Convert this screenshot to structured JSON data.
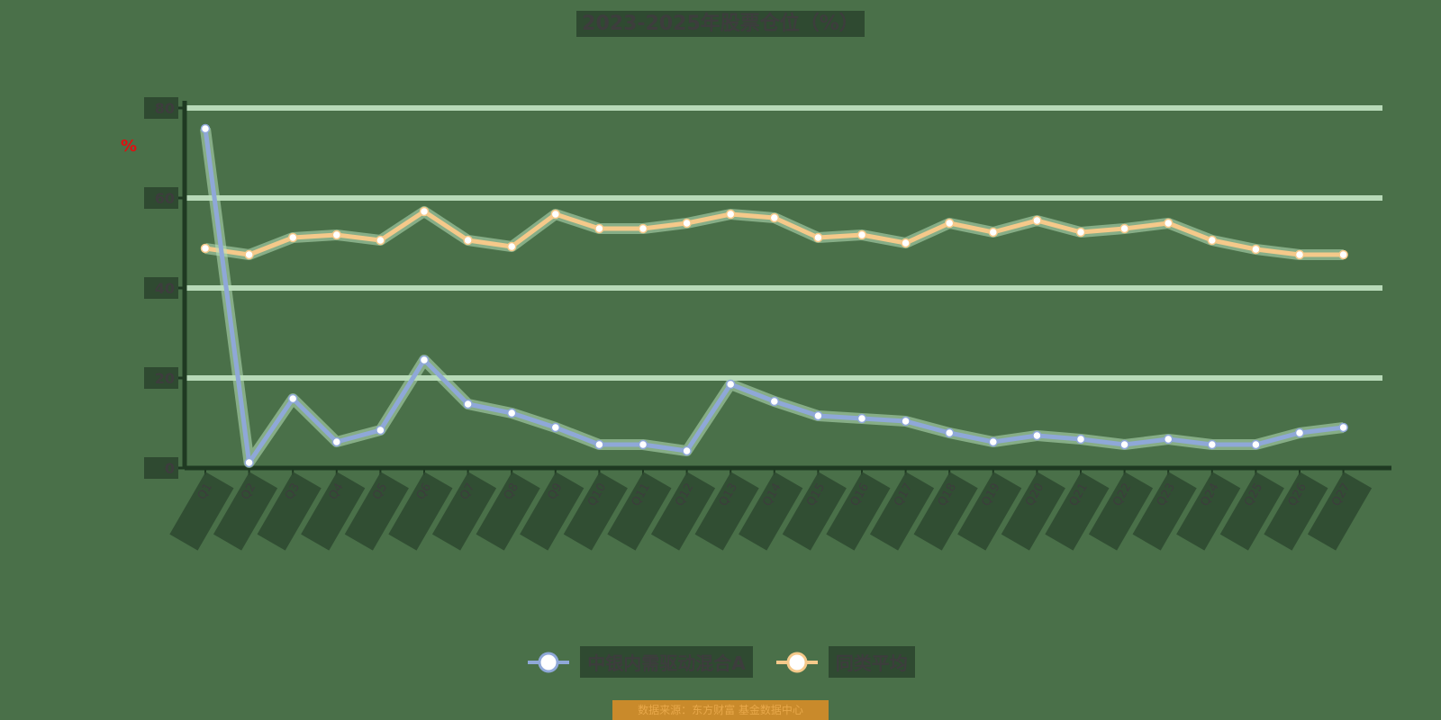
{
  "title": "2023-2025年股票仓位（%）",
  "y_unit_mark": "%",
  "legend": [
    {
      "label": "中银内需驱动混合A",
      "color": "#8fa8d8"
    },
    {
      "label": "同类平均",
      "color": "#f5c98a"
    }
  ],
  "footer": "数据来源：东方财富 基金数据中心",
  "colors": {
    "background": "#4a7049",
    "gridline": "#b8d9b8",
    "axis": "#1f3a22",
    "series_fund": "#8fa8d8",
    "series_avg": "#f5c98a",
    "unit_mark": "#e01010"
  },
  "chart_data": {
    "type": "line",
    "title": "2023-2025年股票仓位（%）",
    "xlabel": "",
    "ylabel": "%",
    "ylim": [
      0,
      80
    ],
    "yticks": [
      0,
      20,
      40,
      60,
      80
    ],
    "grid": true,
    "legend_position": "bottom",
    "categories": [
      "Q1",
      "Q2",
      "Q3",
      "Q4",
      "Q5",
      "Q6",
      "Q7",
      "Q8",
      "Q9",
      "Q10",
      "Q11",
      "Q12",
      "Q13",
      "Q14",
      "Q15",
      "Q16",
      "Q17",
      "Q18",
      "Q19",
      "Q20",
      "Q21",
      "Q22",
      "Q23",
      "Q24",
      "Q25",
      "Q26",
      "Q27"
    ],
    "series": [
      {
        "name": "中银内需驱动混合A",
        "values": [
          75.4,
          1.2,
          15.4,
          5.8,
          8.4,
          24.0,
          14.2,
          12.2,
          9.0,
          5.2,
          5.2,
          3.8,
          18.6,
          14.8,
          11.6,
          11.0,
          10.4,
          7.8,
          5.8,
          7.2,
          6.4,
          5.2,
          6.4,
          5.2,
          5.2,
          7.8,
          9.0
        ]
      },
      {
        "name": "同类平均",
        "values": [
          48.8,
          47.4,
          51.2,
          51.8,
          50.6,
          57.0,
          50.6,
          49.2,
          56.4,
          53.2,
          53.2,
          54.4,
          56.4,
          55.6,
          51.2,
          51.8,
          50.0,
          54.4,
          52.4,
          55.0,
          52.4,
          53.2,
          54.4,
          50.6,
          48.6,
          47.4,
          47.4
        ]
      }
    ]
  }
}
